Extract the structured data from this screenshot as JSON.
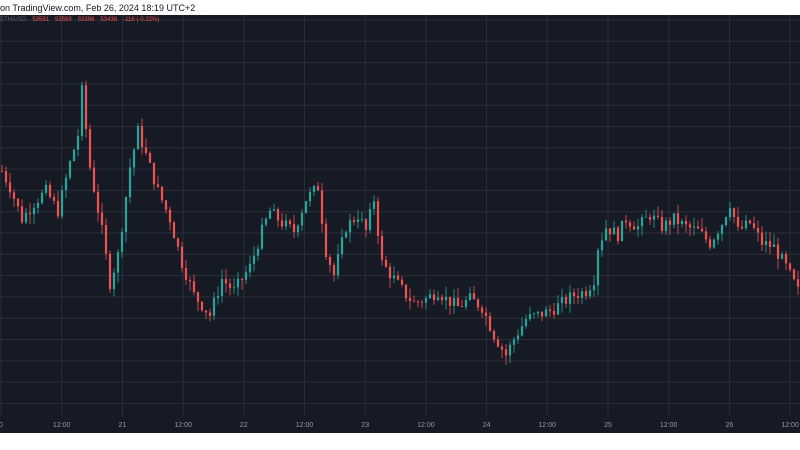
{
  "header": {
    "caption": "on TradingView.com, Feb 26, 2024 18:19 UTC+2"
  },
  "legend": {
    "symbol": "ETH/USD",
    "open": "53591",
    "high": "53593",
    "low": "53398",
    "close": "53438",
    "change": "-116 (-0.22%)"
  },
  "colors": {
    "background": "#161a25",
    "grid": "#2a2e39",
    "up": "#26a69a",
    "down": "#ef5350",
    "tick_text": "#9598a1"
  },
  "chart_data": {
    "type": "candlestick",
    "x_tick_labels": [
      "0",
      "12:00",
      "21",
      "12:00",
      "22",
      "12:00",
      "23",
      "12:00",
      "24",
      "12:00",
      "25",
      "12:00",
      "26",
      "12:00"
    ],
    "y_range": [
      0,
      100
    ],
    "y_gridlines": 19,
    "x_gridlines": 14,
    "grid": true,
    "anchors": [
      [
        0,
        61
      ],
      [
        2,
        57
      ],
      [
        5,
        49
      ],
      [
        8,
        53
      ],
      [
        11,
        56
      ],
      [
        14,
        51
      ],
      [
        17,
        63
      ],
      [
        19,
        70
      ],
      [
        20,
        81
      ],
      [
        22,
        62
      ],
      [
        25,
        46
      ],
      [
        27,
        33
      ],
      [
        29,
        40
      ],
      [
        32,
        62
      ],
      [
        34,
        71
      ],
      [
        36,
        65
      ],
      [
        39,
        56
      ],
      [
        42,
        49
      ],
      [
        45,
        38
      ],
      [
        48,
        30
      ],
      [
        52,
        25
      ],
      [
        55,
        34
      ],
      [
        58,
        31
      ],
      [
        62,
        37
      ],
      [
        65,
        46
      ],
      [
        67,
        51
      ],
      [
        70,
        48
      ],
      [
        73,
        46
      ],
      [
        76,
        54
      ],
      [
        79,
        57
      ],
      [
        81,
        41
      ],
      [
        83,
        35
      ],
      [
        86,
        47
      ],
      [
        89,
        50
      ],
      [
        91,
        46
      ],
      [
        93,
        54
      ],
      [
        95,
        38
      ],
      [
        98,
        34
      ],
      [
        101,
        30
      ],
      [
        103,
        28
      ],
      [
        106,
        29
      ],
      [
        109,
        31
      ],
      [
        111,
        29
      ],
      [
        114,
        27
      ],
      [
        117,
        29
      ],
      [
        120,
        27
      ],
      [
        123,
        20
      ],
      [
        126,
        15
      ],
      [
        128,
        19
      ],
      [
        131,
        24
      ],
      [
        134,
        25
      ],
      [
        137,
        26
      ],
      [
        140,
        28
      ],
      [
        143,
        30
      ],
      [
        146,
        31
      ],
      [
        148,
        34
      ],
      [
        149,
        42
      ],
      [
        151,
        47
      ],
      [
        154,
        45
      ],
      [
        156,
        49
      ],
      [
        159,
        47
      ],
      [
        162,
        50
      ],
      [
        165,
        47
      ],
      [
        168,
        49
      ],
      [
        171,
        47
      ],
      [
        174,
        46
      ],
      [
        177,
        43
      ],
      [
        180,
        48
      ],
      [
        182,
        53
      ],
      [
        184,
        46
      ],
      [
        187,
        48
      ],
      [
        190,
        43
      ],
      [
        193,
        42
      ],
      [
        196,
        37
      ],
      [
        199,
        31
      ]
    ],
    "bar_count": 200
  }
}
